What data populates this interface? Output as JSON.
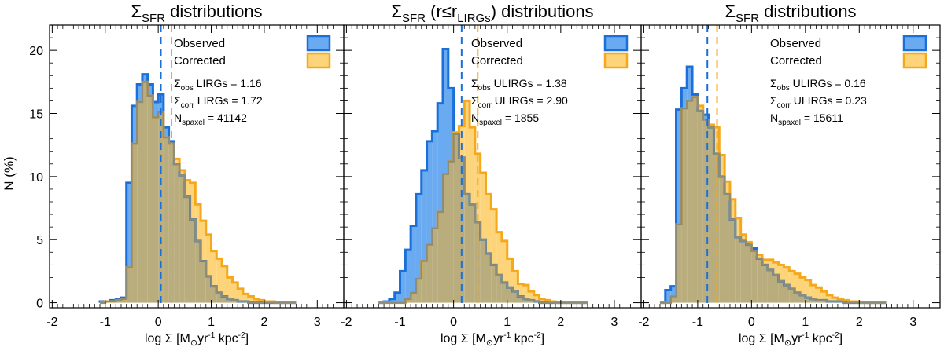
{
  "figure": {
    "ylabel": "N (%)",
    "colors": {
      "observed_fill": "#6aaaf0",
      "observed_edge": "#1a6fd8",
      "corrected_fill": "#fdd47a",
      "corrected_edge": "#f5a81c",
      "overlap_fill": "#b9ad7e",
      "overlap_edge": "#8c8c78"
    }
  },
  "chart_data": [
    {
      "type": "histogram",
      "title_main": "Σ",
      "title_sub": "SFR",
      "title_rest": " distributions",
      "xlabel": "log Σ [M",
      "xlim": [
        -2.05,
        3.5
      ],
      "ylim": [
        -0.4,
        22
      ],
      "xticks": [
        -2,
        -1,
        0,
        1,
        2,
        3
      ],
      "yticks": [
        0,
        5,
        10,
        15,
        20
      ],
      "bin_edges": [
        -1.1,
        -1.0,
        -0.9,
        -0.8,
        -0.7,
        -0.6,
        -0.5,
        -0.4,
        -0.3,
        -0.2,
        -0.1,
        0.0,
        0.1,
        0.2,
        0.3,
        0.4,
        0.5,
        0.6,
        0.7,
        0.8,
        0.9,
        1.0,
        1.1,
        1.2,
        1.3,
        1.4,
        1.5,
        1.6,
        1.7,
        1.8,
        1.9,
        2.0,
        2.1,
        2.2,
        2.3,
        2.4,
        2.5,
        2.6
      ],
      "series": [
        {
          "name": "Observed",
          "values": [
            0.1,
            0.1,
            0.2,
            0.3,
            0.4,
            9.5,
            15.6,
            17.3,
            18.1,
            17.3,
            15.9,
            16.5,
            13.9,
            12.8,
            11.0,
            10.1,
            8.4,
            6.6,
            4.9,
            3.3,
            2.1,
            1.3,
            0.8,
            0.5,
            0.3,
            0.2,
            0.1,
            0.1,
            0,
            0,
            0,
            0,
            0,
            0,
            0,
            0,
            0
          ]
        },
        {
          "name": "Corrected",
          "values": [
            0,
            0.1,
            0.1,
            0.2,
            0.3,
            2.8,
            12.6,
            15.9,
            17.5,
            16.4,
            14.7,
            15.1,
            13.1,
            12.6,
            11.4,
            10.5,
            9.7,
            9.5,
            7.8,
            6.5,
            5.4,
            4.1,
            3.5,
            2.9,
            2.0,
            1.6,
            1.1,
            0.7,
            0.5,
            0.3,
            0.2,
            0.1,
            0.1,
            0,
            0,
            0,
            0
          ]
        }
      ],
      "mean_observed": 0.05,
      "mean_corrected": 0.25,
      "legend": [
        "Observed",
        "Corrected"
      ],
      "stats": [
        {
          "sym": "Σ",
          "sub": "obs",
          "text": " LIRGs = 1.16"
        },
        {
          "sym": "Σ",
          "sub": "corr",
          "text": " LIRGs = 1.72"
        },
        {
          "sym": "N",
          "sub": "spaxel",
          "text": " = 41142"
        }
      ]
    },
    {
      "type": "histogram",
      "title_main": "Σ",
      "title_sub": "SFR",
      "title_mid": " (r≤r",
      "title_sub2": "LIRGs",
      "title_rest": ") distributions",
      "xlim": [
        -2.05,
        3.5
      ],
      "ylim": [
        -0.4,
        22
      ],
      "xticks": [
        -2,
        -1,
        0,
        1,
        2,
        3
      ],
      "yticks": [
        0,
        5,
        10,
        15,
        20
      ],
      "bin_edges": [
        -1.4,
        -1.3,
        -1.2,
        -1.1,
        -1.0,
        -0.9,
        -0.8,
        -0.7,
        -0.6,
        -0.5,
        -0.4,
        -0.3,
        -0.2,
        -0.1,
        0.0,
        0.1,
        0.2,
        0.3,
        0.4,
        0.5,
        0.6,
        0.7,
        0.8,
        0.9,
        1.0,
        1.1,
        1.2,
        1.3,
        1.4,
        1.5,
        1.6,
        1.7,
        1.8,
        1.9,
        2.0,
        2.1,
        2.2,
        2.3,
        2.4,
        2.5
      ],
      "series": [
        {
          "name": "Observed",
          "values": [
            0,
            0.1,
            0.3,
            0.8,
            2.5,
            4.2,
            6.1,
            8.6,
            10.5,
            12.8,
            13.6,
            15.8,
            20.1,
            17.0,
            13.4,
            11.5,
            8.6,
            7.8,
            6.4,
            5.0,
            3.9,
            3.0,
            2.2,
            1.6,
            1.2,
            0.9,
            0.5,
            0.3,
            0.2,
            0.1,
            0,
            0,
            0,
            0,
            0,
            0,
            0,
            0,
            0
          ]
        },
        {
          "name": "Corrected",
          "values": [
            0,
            0,
            0,
            0,
            0,
            0.3,
            0.8,
            1.9,
            3.3,
            4.6,
            5.9,
            7.2,
            10.2,
            11.2,
            13.5,
            14.0,
            16.0,
            13.9,
            11.8,
            10.3,
            8.6,
            7.4,
            5.6,
            4.9,
            3.5,
            2.5,
            1.5,
            1.4,
            0.9,
            0.6,
            0.3,
            0.2,
            0.1,
            0,
            0,
            0,
            0,
            0,
            0
          ]
        }
      ],
      "mean_observed": 0.15,
      "mean_corrected": 0.45,
      "legend": [
        "Observed",
        "Corrected"
      ],
      "stats": [
        {
          "sym": "Σ",
          "sub": "obs",
          "text": " ULIRGs = 1.38"
        },
        {
          "sym": "Σ",
          "sub": "corr",
          "text": " ULIRGs = 2.90"
        },
        {
          "sym": "N",
          "sub": "spaxel",
          "text": " =  1855"
        }
      ]
    },
    {
      "type": "histogram",
      "title_main": "Σ",
      "title_sub": "SFR",
      "title_rest": " distributions",
      "xlim": [
        -2.05,
        3.5
      ],
      "ylim": [
        -0.4,
        22
      ],
      "xticks": [
        -2,
        -1,
        0,
        1,
        2,
        3
      ],
      "yticks": [
        0,
        5,
        10,
        15,
        20
      ],
      "bin_edges": [
        -1.7,
        -1.6,
        -1.5,
        -1.4,
        -1.3,
        -1.2,
        -1.1,
        -1.0,
        -0.9,
        -0.8,
        -0.7,
        -0.6,
        -0.5,
        -0.4,
        -0.3,
        -0.2,
        -0.1,
        0.0,
        0.1,
        0.2,
        0.3,
        0.4,
        0.5,
        0.6,
        0.7,
        0.8,
        0.9,
        1.0,
        1.1,
        1.2,
        1.3,
        1.4,
        1.5,
        1.6,
        1.7,
        1.8,
        1.9,
        2.0,
        2.1,
        2.2,
        2.3,
        2.4,
        2.5
      ],
      "series": [
        {
          "name": "Observed",
          "values": [
            0,
            1.0,
            1.3,
            15.3,
            17.0,
            18.7,
            16.5,
            15.2,
            14.9,
            13.9,
            11.8,
            10.0,
            8.6,
            6.6,
            5.2,
            4.9,
            4.6,
            4.3,
            3.5,
            3.0,
            2.6,
            2.2,
            1.7,
            1.4,
            1.1,
            0.8,
            0.6,
            0.4,
            0.3,
            0.2,
            0.2,
            0.1,
            0.1,
            0.1,
            0,
            0,
            0,
            0,
            0,
            0,
            0,
            0
          ]
        },
        {
          "name": "Corrected",
          "values": [
            0,
            0,
            0.5,
            6.2,
            15.4,
            16.0,
            16.3,
            15.6,
            14.5,
            14.1,
            13.9,
            11.7,
            9.6,
            8.2,
            6.7,
            5.4,
            4.8,
            4.1,
            3.8,
            3.4,
            3.4,
            3.2,
            3.0,
            2.8,
            2.5,
            2.3,
            2.0,
            1.8,
            1.4,
            1.2,
            0.9,
            0.6,
            0.4,
            0.3,
            0.2,
            0.1,
            0.1,
            0,
            0,
            0,
            0,
            0
          ]
        }
      ],
      "mean_observed": -0.82,
      "mean_corrected": -0.64,
      "legend": [
        "Observed",
        "Corrected"
      ],
      "stats": [
        {
          "sym": "Σ",
          "sub": "obs",
          "text": " ULIRGs = 0.16"
        },
        {
          "sym": "Σ",
          "sub": "corr",
          "text": " ULIRGs = 0.23"
        },
        {
          "sym": "N",
          "sub": "spaxel",
          "text": " = 15611"
        }
      ]
    }
  ],
  "xlabel_parts": {
    "a": "log Σ [M",
    "sun": "⊙",
    "b": "yr",
    "exp1": "-1",
    "c": " kpc",
    "exp2": "-2",
    "d": "]"
  }
}
